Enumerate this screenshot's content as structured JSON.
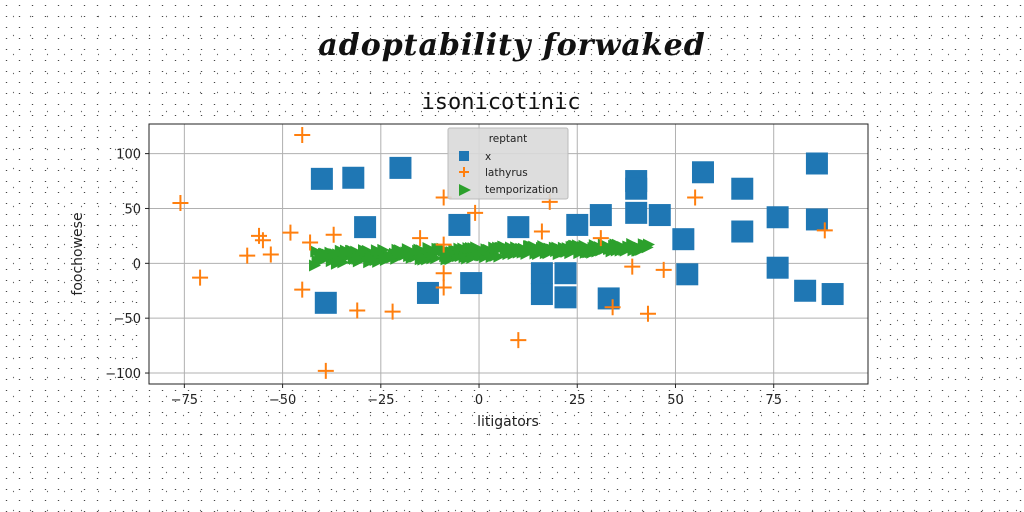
{
  "chart_data": {
    "type": "scatter",
    "suptitle": "adoptability forwaked",
    "title": "isonicotinic",
    "xlabel": "litigators",
    "ylabel": "foochowese",
    "xlim": [
      -84,
      99
    ],
    "ylim": [
      -110,
      127
    ],
    "xticks": [
      -75,
      -50,
      -25,
      0,
      25,
      50,
      75
    ],
    "yticks": [
      -100,
      -50,
      0,
      50,
      100
    ],
    "grid": true,
    "legend": {
      "title": "reptant",
      "placement": "upper-center"
    },
    "colors": {
      "x": "#1f77b4",
      "lathyrus": "#ff7f0e",
      "temporization": "#2ca02c"
    },
    "series": [
      {
        "name": "x",
        "marker": "square",
        "points": [
          [
            -40,
            77
          ],
          [
            -32,
            78
          ],
          [
            -20,
            87
          ],
          [
            -29,
            33
          ],
          [
            -5,
            35
          ],
          [
            10,
            33
          ],
          [
            -39,
            -36
          ],
          [
            -13,
            -27
          ],
          [
            -2,
            -18
          ],
          [
            16,
            -9
          ],
          [
            22,
            -9
          ],
          [
            16,
            -28
          ],
          [
            22,
            -31
          ],
          [
            33,
            -32
          ],
          [
            25,
            35
          ],
          [
            31,
            44
          ],
          [
            40,
            75
          ],
          [
            40,
            68
          ],
          [
            40,
            46
          ],
          [
            46,
            44
          ],
          [
            52,
            22
          ],
          [
            53,
            -10
          ],
          [
            57,
            83
          ],
          [
            67,
            68
          ],
          [
            67,
            29
          ],
          [
            76,
            42
          ],
          [
            76,
            -4
          ],
          [
            86,
            91
          ],
          [
            86,
            40
          ],
          [
            83,
            -25
          ],
          [
            90,
            -28
          ]
        ]
      },
      {
        "name": "lathyrus",
        "marker": "plus",
        "points": [
          [
            -45,
            117
          ],
          [
            -76,
            55
          ],
          [
            -71,
            -13
          ],
          [
            -59,
            7
          ],
          [
            -56,
            25
          ],
          [
            -55,
            21
          ],
          [
            -53,
            8
          ],
          [
            -48,
            28
          ],
          [
            -43,
            19
          ],
          [
            -45,
            -24
          ],
          [
            -37,
            26
          ],
          [
            -31,
            -43
          ],
          [
            -22,
            -44
          ],
          [
            -39,
            -98
          ],
          [
            -15,
            23
          ],
          [
            -9,
            60
          ],
          [
            -9,
            17
          ],
          [
            -9,
            -9
          ],
          [
            -9,
            -22
          ],
          [
            -1,
            46
          ],
          [
            10,
            -70
          ],
          [
            16,
            29
          ],
          [
            18,
            56
          ],
          [
            31,
            23
          ],
          [
            34,
            -40
          ],
          [
            39,
            -3
          ],
          [
            43,
            -46
          ],
          [
            47,
            -6
          ],
          [
            55,
            60
          ],
          [
            88,
            30
          ]
        ]
      },
      {
        "name": "temporization",
        "marker": "triangle-right",
        "line": {
          "x_start": -42,
          "x_end": 43,
          "y_start_center": 5,
          "y_end_center": 15,
          "y_start_halfwidth": 7,
          "y_end_halfwidth": 3,
          "count": 260
        }
      }
    ]
  }
}
